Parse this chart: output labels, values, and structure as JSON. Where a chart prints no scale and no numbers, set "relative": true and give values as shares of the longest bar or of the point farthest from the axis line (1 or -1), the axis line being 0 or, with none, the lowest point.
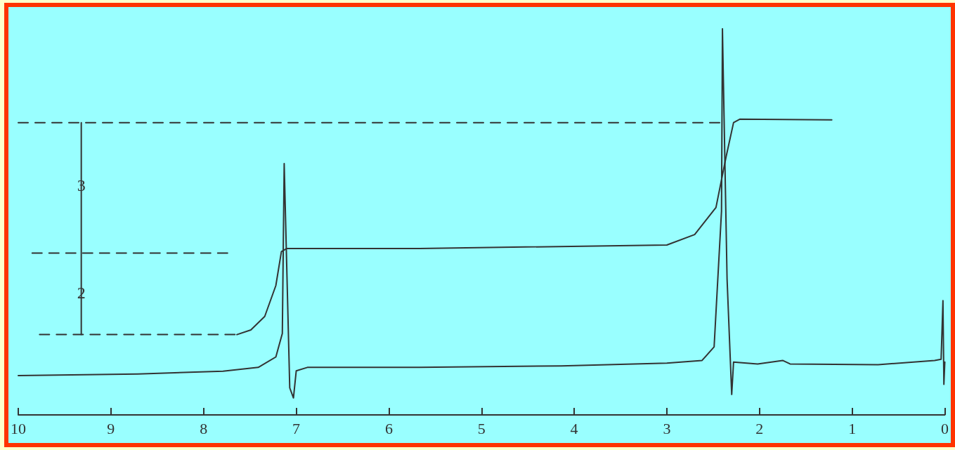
{
  "chart_data": {
    "type": "line",
    "relative": true,
    "grid": false,
    "marker": "none",
    "xlim": [
      10,
      0
    ],
    "xticks": [
      10,
      9,
      8,
      7,
      6,
      5,
      4,
      3,
      2,
      1,
      0
    ],
    "annotations": [
      {
        "text": "3",
        "x": 9.32,
        "y": 0.595
      },
      {
        "text": "2",
        "x": 9.32,
        "y": 0.317
      }
    ],
    "series": [
      {
        "color": "#333333",
        "line_style": "solid",
        "x": [
          10.0,
          8.71,
          7.79,
          7.41,
          7.22,
          7.15,
          7.13,
          7.07,
          7.03,
          7.0,
          6.88,
          5.67,
          4.14,
          3.0,
          2.62,
          2.49,
          2.41,
          2.4,
          2.35,
          2.3,
          2.28,
          2.02,
          1.75,
          1.67,
          0.72,
          0.11,
          0.04,
          0.02,
          0.01,
          0.0
        ],
        "values": [
          0.102,
          0.106,
          0.113,
          0.123,
          0.15,
          0.211,
          0.651,
          0.07,
          0.044,
          0.114,
          0.123,
          0.123,
          0.127,
          0.134,
          0.141,
          0.176,
          0.528,
          1.0,
          0.352,
          0.053,
          0.137,
          0.132,
          0.141,
          0.132,
          0.13,
          0.141,
          0.144,
          0.296,
          0.079,
          0.137
        ]
      },
      {
        "color": "#333333",
        "line_style": "solid",
        "x": [
          7.64,
          7.49,
          7.34,
          7.22,
          7.16,
          7.1,
          5.67,
          3.0,
          2.7,
          2.47,
          2.36,
          2.28,
          2.21,
          1.22
        ],
        "values": [
          0.208,
          0.22,
          0.255,
          0.335,
          0.423,
          0.431,
          0.431,
          0.44,
          0.467,
          0.537,
          0.669,
          0.757,
          0.766,
          0.764
        ]
      },
      {
        "color": "#333333",
        "line_style": "dashed",
        "x": [
          10.0,
          2.4
        ],
        "values": [
          0.757,
          0.757
        ]
      },
      {
        "color": "#333333",
        "line_style": "dashed",
        "x": [
          9.85,
          7.72
        ],
        "values": [
          0.419,
          0.419
        ]
      },
      {
        "color": "#333333",
        "line_style": "dashed",
        "x": [
          9.77,
          7.64
        ],
        "values": [
          0.208,
          0.208
        ]
      },
      {
        "color": "#333333",
        "line_style": "solid",
        "x": [
          9.32,
          9.32
        ],
        "values": [
          0.757,
          0.208
        ]
      }
    ]
  }
}
